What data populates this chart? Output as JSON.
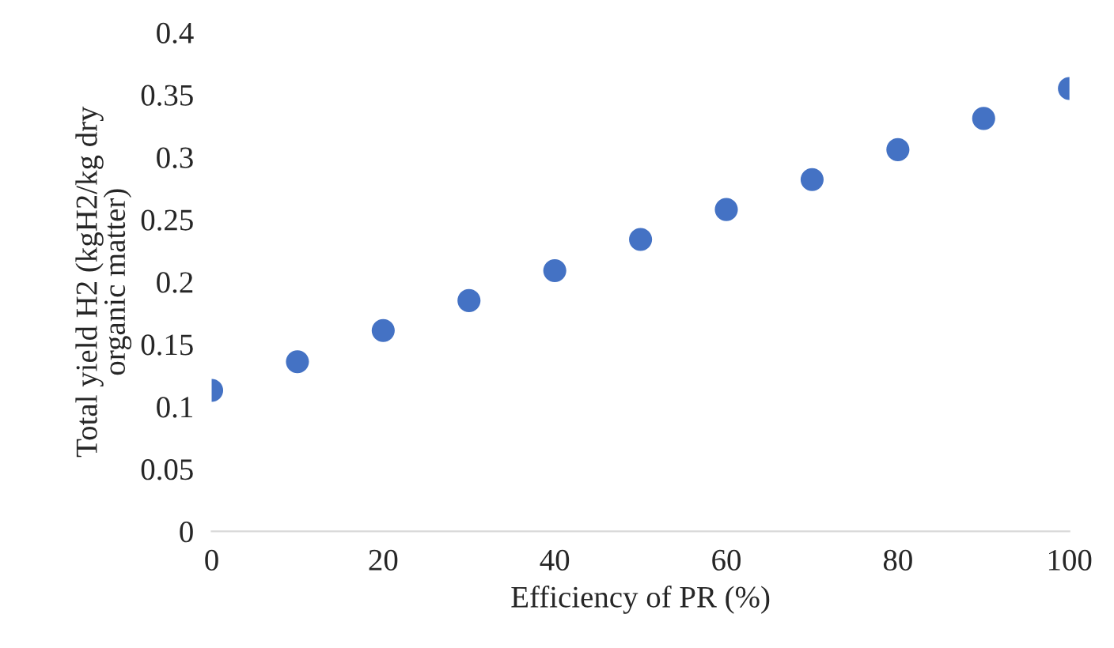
{
  "chart_data": {
    "type": "scatter",
    "xlabel": "Efficiency of PR (%)",
    "ylabel": "Total yield H2 (kgH2/kg dry\norganic matter)",
    "x": [
      0,
      10,
      20,
      30,
      40,
      50,
      60,
      70,
      80,
      90,
      100
    ],
    "series": [
      {
        "color": "#4472c4",
        "values": [
          0.113,
          0.136,
          0.161,
          0.185,
          0.209,
          0.234,
          0.258,
          0.282,
          0.306,
          0.331,
          0.355
        ]
      }
    ],
    "xlim": [
      0,
      100
    ],
    "xticks": [
      0,
      20,
      40,
      60,
      80,
      100
    ],
    "ylim": [
      0,
      0.4
    ],
    "yticks": [
      0,
      0.05,
      0.1,
      0.15,
      0.2,
      0.25,
      0.3,
      0.35,
      0.4
    ],
    "grid": false,
    "marker": "circle",
    "legend": false
  }
}
